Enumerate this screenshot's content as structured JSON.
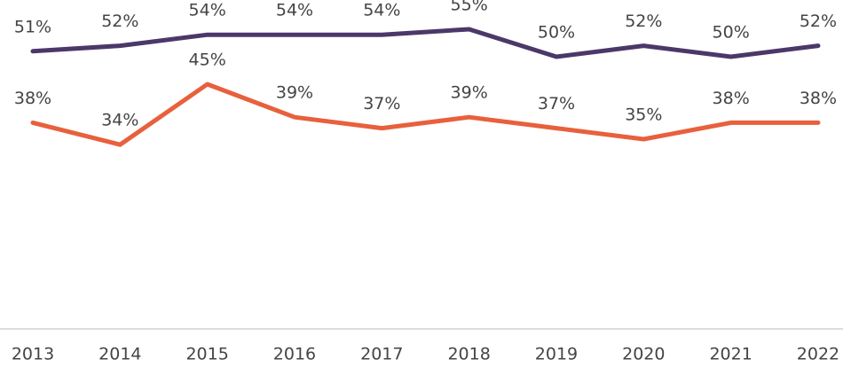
{
  "chart_data": {
    "type": "line",
    "categories": [
      "2013",
      "2014",
      "2015",
      "2016",
      "2017",
      "2018",
      "2019",
      "2020",
      "2021",
      "2022"
    ],
    "series": [
      {
        "color": "#4b3869",
        "values": [
          51,
          52,
          54,
          54,
          54,
          55,
          50,
          52,
          50,
          52
        ],
        "value_labels": [
          "51%",
          "52%",
          "54%",
          "54%",
          "54%",
          "55%",
          "50%",
          "52%",
          "50%",
          "52%"
        ]
      },
      {
        "color": "#e8603c",
        "values": [
          38,
          34,
          45,
          39,
          37,
          39,
          37,
          35,
          38,
          38
        ],
        "value_labels": [
          "38%",
          "34%",
          "45%",
          "39%",
          "37%",
          "39%",
          "37%",
          "35%",
          "38%",
          "38%"
        ]
      }
    ],
    "ylim": [
      0,
      60
    ]
  }
}
